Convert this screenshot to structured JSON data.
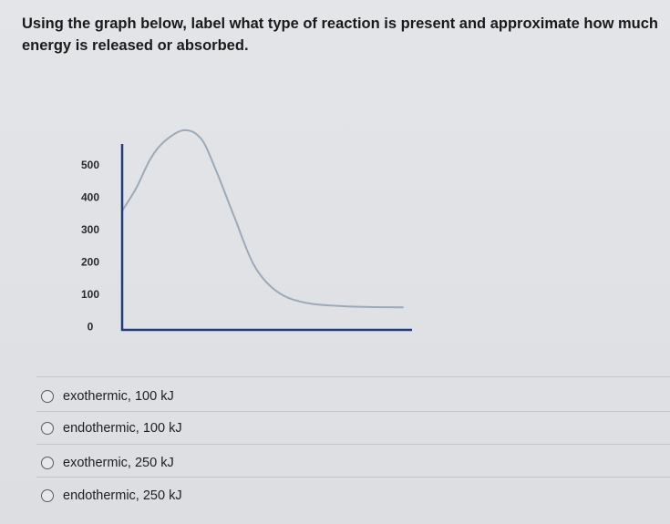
{
  "question": {
    "text": "Using the graph below, label what type of reaction is present and approximate how much energy is released or absorbed."
  },
  "chart_data": {
    "type": "line",
    "title": "",
    "xlabel": "",
    "ylabel": "",
    "y_ticks": [
      "500",
      "400",
      "300",
      "200",
      "100",
      "0"
    ],
    "ylim": [
      0,
      600
    ],
    "series": [
      {
        "values": [
          {
            "x": 0,
            "y": 370
          },
          {
            "x": 5,
            "y": 440
          },
          {
            "x": 10,
            "y": 530
          },
          {
            "x": 15,
            "y": 585
          },
          {
            "x": 22,
            "y": 620
          },
          {
            "x": 28,
            "y": 595
          },
          {
            "x": 33,
            "y": 505
          },
          {
            "x": 40,
            "y": 350
          },
          {
            "x": 47,
            "y": 200
          },
          {
            "x": 55,
            "y": 120
          },
          {
            "x": 65,
            "y": 85
          },
          {
            "x": 80,
            "y": 73
          },
          {
            "x": 100,
            "y": 70
          }
        ]
      }
    ],
    "colors": {
      "axis": "#1f3d7a",
      "curve": "#9ca9b8"
    }
  },
  "options": [
    {
      "label": "exothermic, 100 kJ"
    },
    {
      "label": "endothermic, 100 kJ"
    },
    {
      "label": "exothermic, 250 kJ"
    },
    {
      "label": "endothermic, 250 kJ"
    }
  ]
}
